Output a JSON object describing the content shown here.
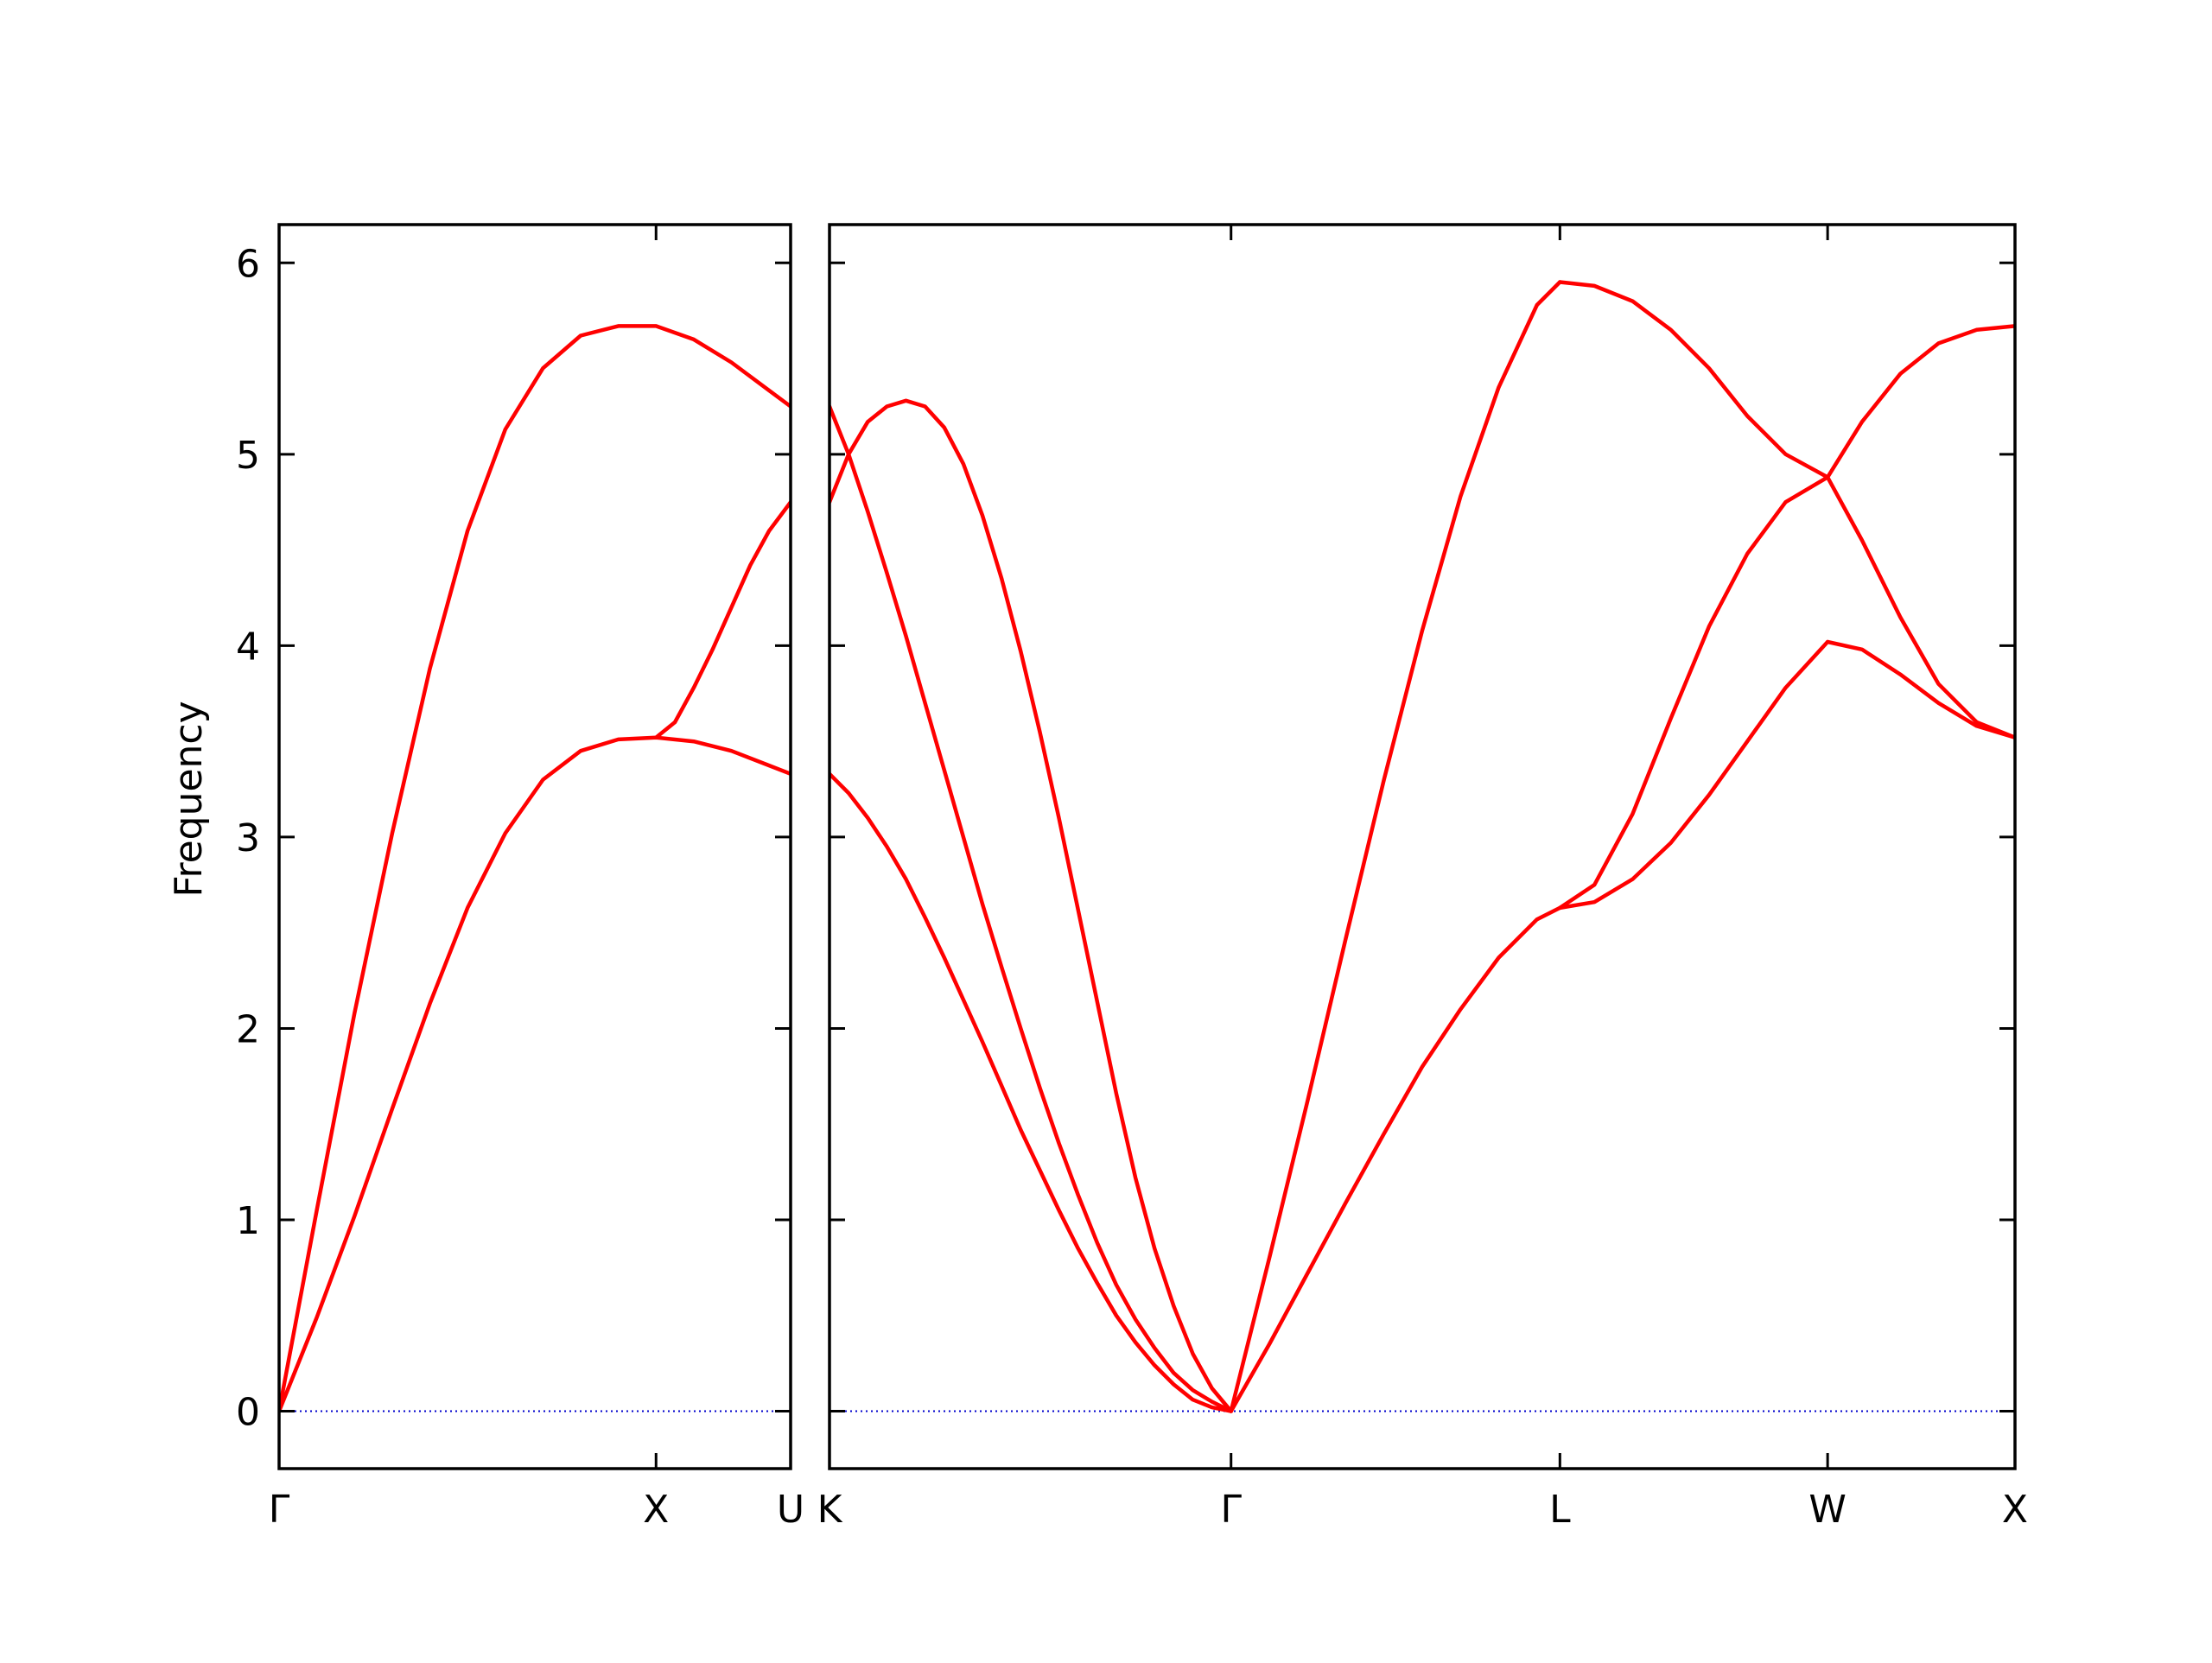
{
  "chart_data": {
    "type": "line",
    "ylabel": "Frequency",
    "ylim": [
      -0.3,
      6.2
    ],
    "yticks": [
      0,
      1,
      2,
      3,
      4,
      5,
      6
    ],
    "ytick_labels": [
      "0",
      "1",
      "2",
      "3",
      "4",
      "5",
      "6"
    ],
    "colors": {
      "band": "#ff0000",
      "zero_line": "#0000cd",
      "frame": "#000000"
    },
    "panels": [
      {
        "name": "left",
        "xlim": [
          0,
          1.357
        ],
        "xticks": [
          {
            "pos": 0,
            "label": "Γ"
          },
          {
            "pos": 1.0,
            "label": "X"
          },
          {
            "pos": 1.357,
            "label": "U"
          }
        ],
        "series": [
          {
            "x": [
              0,
              0.1,
              0.2,
              0.3,
              0.4,
              0.5,
              0.6,
              0.7,
              0.8,
              0.9,
              1.0,
              1.1,
              1.2,
              1.357
            ],
            "y": [
              0,
              1.05,
              2.08,
              3.02,
              3.88,
              4.6,
              5.13,
              5.45,
              5.62,
              5.67,
              5.67,
              5.6,
              5.48,
              5.25
            ]
          },
          {
            "x": [
              0,
              0.1,
              0.2,
              0.3,
              0.4,
              0.5,
              0.6,
              0.7,
              0.8,
              0.9,
              1.0,
              1.1,
              1.2,
              1.357
            ],
            "y": [
              0,
              0.49,
              1.02,
              1.58,
              2.13,
              2.63,
              3.02,
              3.3,
              3.45,
              3.51,
              3.52,
              3.5,
              3.45,
              3.33
            ]
          },
          {
            "x": [
              1.0,
              1.05,
              1.1,
              1.15,
              1.2,
              1.25,
              1.3,
              1.357
            ],
            "y": [
              3.52,
              3.6,
              3.78,
              3.98,
              4.2,
              4.42,
              4.6,
              4.75
            ]
          }
        ]
      },
      {
        "name": "right",
        "xlim": [
          0,
          3.1
        ],
        "xticks": [
          {
            "pos": 0,
            "label": "K"
          },
          {
            "pos": 1.05,
            "label": "Γ"
          },
          {
            "pos": 1.91,
            "label": "L"
          },
          {
            "pos": 2.61,
            "label": "W"
          },
          {
            "pos": 3.1,
            "label": "X"
          }
        ],
        "series": [
          {
            "x": [
              0,
              0.05,
              0.1,
              0.15,
              0.2,
              0.25,
              0.3,
              0.35,
              0.4,
              0.45,
              0.5,
              0.55,
              0.6,
              0.65,
              0.7,
              0.75,
              0.8,
              0.85,
              0.9,
              0.95,
              1.0,
              1.05
            ],
            "y": [
              4.75,
              5.0,
              5.17,
              5.25,
              5.28,
              5.25,
              5.14,
              4.95,
              4.68,
              4.35,
              3.97,
              3.55,
              3.1,
              2.62,
              2.14,
              1.66,
              1.22,
              0.85,
              0.55,
              0.3,
              0.12,
              0
            ]
          },
          {
            "x": [
              0,
              0.05,
              0.1,
              0.15,
              0.2,
              0.25,
              0.3,
              0.35,
              0.4,
              0.45,
              0.5,
              0.55,
              0.6,
              0.65,
              0.7,
              0.75,
              0.8,
              0.85,
              0.9,
              0.95,
              1.0,
              1.05
            ],
            "y": [
              5.25,
              5.0,
              4.7,
              4.38,
              4.05,
              3.7,
              3.35,
              3.0,
              2.65,
              2.32,
              2.0,
              1.69,
              1.4,
              1.13,
              0.88,
              0.66,
              0.48,
              0.33,
              0.2,
              0.11,
              0.05,
              0
            ]
          },
          {
            "x": [
              0,
              0.05,
              0.1,
              0.15,
              0.2,
              0.25,
              0.3,
              0.35,
              0.4,
              0.45,
              0.5,
              0.55,
              0.6,
              0.65,
              0.7,
              0.75,
              0.8,
              0.85,
              0.9,
              0.95,
              1.0,
              1.05
            ],
            "y": [
              3.33,
              3.23,
              3.1,
              2.95,
              2.78,
              2.58,
              2.37,
              2.15,
              1.93,
              1.7,
              1.47,
              1.26,
              1.05,
              0.85,
              0.67,
              0.5,
              0.36,
              0.24,
              0.14,
              0.06,
              0.02,
              0
            ]
          },
          {
            "x": [
              1.05,
              1.15,
              1.25,
              1.35,
              1.45,
              1.55,
              1.65,
              1.75,
              1.85,
              1.91
            ],
            "y": [
              0,
              0.8,
              1.62,
              2.47,
              3.3,
              4.08,
              4.78,
              5.35,
              5.78,
              5.9
            ]
          },
          {
            "x": [
              1.05,
              1.15,
              1.25,
              1.35,
              1.45,
              1.55,
              1.65,
              1.75,
              1.85,
              1.91
            ],
            "y": [
              0,
              0.35,
              0.72,
              1.09,
              1.45,
              1.8,
              2.1,
              2.37,
              2.57,
              2.63
            ]
          },
          {
            "x": [
              1.91,
              2.0,
              2.1,
              2.2,
              2.3,
              2.4,
              2.5,
              2.61
            ],
            "y": [
              5.9,
              5.88,
              5.8,
              5.65,
              5.45,
              5.2,
              5.0,
              4.88
            ]
          },
          {
            "x": [
              1.91,
              2.0,
              2.1,
              2.2,
              2.3,
              2.4,
              2.5,
              2.61
            ],
            "y": [
              2.63,
              2.75,
              3.12,
              3.62,
              4.1,
              4.48,
              4.75,
              4.88
            ]
          },
          {
            "x": [
              1.91,
              2.0,
              2.1,
              2.2,
              2.3,
              2.4,
              2.5,
              2.61
            ],
            "y": [
              2.63,
              2.66,
              2.78,
              2.97,
              3.22,
              3.5,
              3.78,
              4.02
            ]
          },
          {
            "x": [
              2.61,
              2.7,
              2.8,
              2.9,
              3.0,
              3.1
            ],
            "y": [
              4.88,
              5.17,
              5.42,
              5.58,
              5.65,
              5.67
            ]
          },
          {
            "x": [
              2.61,
              2.7,
              2.8,
              2.9,
              3.0,
              3.1
            ],
            "y": [
              4.88,
              4.55,
              4.15,
              3.8,
              3.6,
              3.52
            ]
          },
          {
            "x": [
              2.61,
              2.7,
              2.8,
              2.9,
              3.0,
              3.1
            ],
            "y": [
              4.02,
              3.98,
              3.85,
              3.7,
              3.58,
              3.52
            ]
          }
        ]
      }
    ]
  }
}
